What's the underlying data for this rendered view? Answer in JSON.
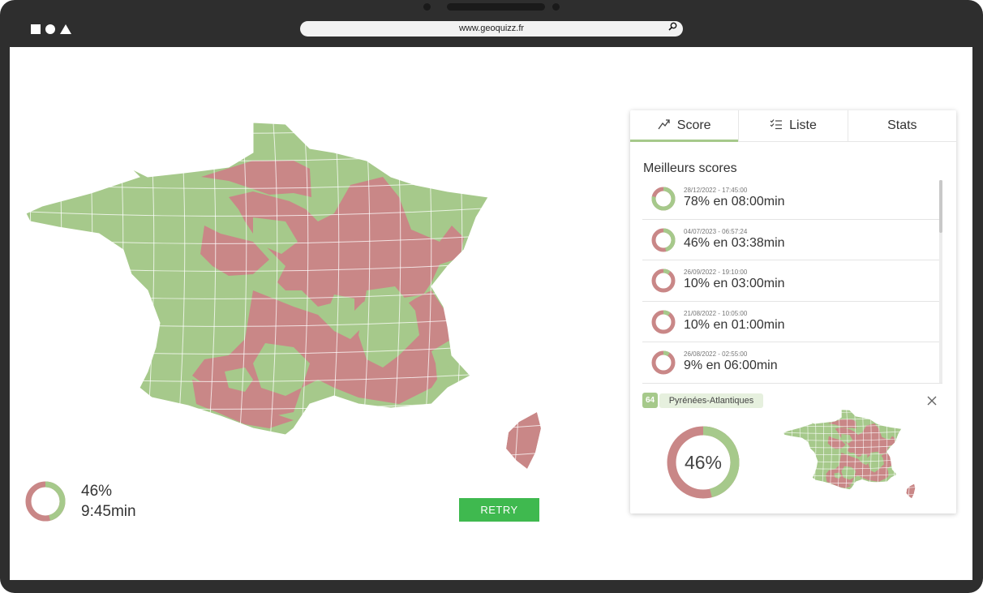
{
  "browser": {
    "url": "www.geoquizz.fr",
    "search_icon": "magnifier-icon"
  },
  "colors": {
    "correct": "#a6c98b",
    "wrong": "#c98787",
    "retry_button": "#3fb94f"
  },
  "result": {
    "percent": "46%",
    "percent_value": 46,
    "time": "9:45min",
    "retry_label": "RETRY"
  },
  "panel": {
    "tabs": [
      {
        "label": "Score",
        "icon": "score-trend-icon"
      },
      {
        "label": "Liste",
        "icon": "checklist-icon"
      },
      {
        "label": "Stats",
        "icon": ""
      }
    ],
    "title": "Meilleurs scores",
    "scores": [
      {
        "date": "28/12/2022 - 17:45:00",
        "result": "78% en 08:00min",
        "percent": 78
      },
      {
        "date": "04/07/2023 - 06:57:24",
        "result": "46% en 03:38min",
        "percent": 46
      },
      {
        "date": "26/09/2022 - 19:10:00",
        "result": "10% en 03:00min",
        "percent": 10
      },
      {
        "date": "21/08/2022 - 10:05:00",
        "result": "10% en 01:00min",
        "percent": 10
      },
      {
        "date": "26/08/2022 - 02:55:00",
        "result": "9% en 06:00min",
        "percent": 9
      }
    ],
    "detail": {
      "department_number": "64",
      "department_name": "Pyrénées-Atlantiques",
      "percent": "46%",
      "percent_value": 46
    }
  }
}
